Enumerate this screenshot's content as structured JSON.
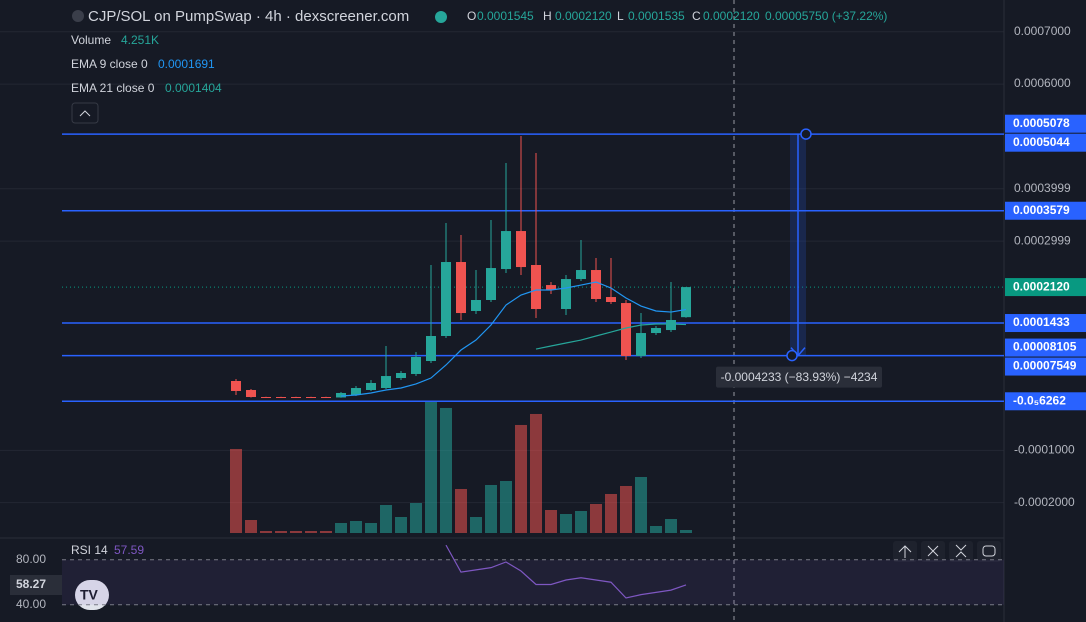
{
  "chart_data": {
    "type": "candlestick",
    "title": "CJP/SOL on PumpSwap · 4h · dexscreener.com",
    "ohlc_legend": [
      {
        "key": "O",
        "value": "0.0001545"
      },
      {
        "key": "H",
        "value": "0.0002120"
      },
      {
        "key": "L",
        "value": "0.0001535"
      },
      {
        "key": "C",
        "value": "0.0002120"
      }
    ],
    "change": "0.00005750 (+37.22%)",
    "categories": [
      null,
      null,
      null,
      null,
      null,
      null,
      null,
      null,
      null,
      null,
      null,
      null,
      null,
      null,
      null,
      null,
      null,
      null,
      null,
      null,
      null,
      null,
      null,
      null,
      null,
      null,
      null,
      null,
      null,
      null,
      null
    ],
    "open": [
      3.25e-05,
      1.53e-05,
      1.9e-06,
      1.9e-06,
      1.9e-06,
      1.9e-06,
      1.9e-06,
      1e-06,
      5.7e-06,
      1.53e-05,
      1.91e-05,
      3.82e-05,
      4.59e-05,
      7.07e-05,
      0.0001185,
      0.0002599,
      0.0001663,
      0.0001873,
      0.0002465,
      0.0003191,
      0.0002542,
      0.0002159,
      0.0001701,
      0.0002274,
      0.0002446,
      0.000193,
      0.0001815,
      8.03e-05,
      0.0001242,
      0.0001299,
      0.0001545
    ],
    "high": [
      3.63e-05,
      1.72e-05,
      2.5e-06,
      2.5e-06,
      2.5e-06,
      2.5e-06,
      2.5e-06,
      1.15e-05,
      2.29e-05,
      3.44e-05,
      9.94e-05,
      5.16e-05,
      8.79e-05,
      0.0002542,
      0.0003344,
      0.0003115,
      0.0002446,
      0.0003402,
      0.0004491,
      0.0005007,
      0.0004682,
      0.0002217,
      0.0002351,
      0.0003019,
      0.0002675,
      0.0002675,
      0.0001873,
      0.0001624,
      0.0001376,
      0.0002217,
      0.000212
    ],
    "low": [
      5.7e-06,
      1e-06,
      1e-06,
      1e-06,
      1e-06,
      1e-06,
      1e-06,
      5e-07,
      3.8e-06,
      1.34e-05,
      1.72e-05,
      3.44e-05,
      4.2e-05,
      6.69e-05,
      0.0001147,
      0.0001491,
      0.0001605,
      0.0001835,
      0.0002389,
      0.0002351,
      0.0001529,
      0.0001987,
      0.0001586,
      0.0002236,
      0.0001835,
      0.0001796,
      7.26e-05,
      7.64e-05,
      0.0001204,
      0.0001261,
      0.0001535
    ],
    "close": [
      1.34e-05,
      1.9e-06,
      1.5e-06,
      1.5e-06,
      1.5e-06,
      1.5e-06,
      1.5e-06,
      9.6e-06,
      1.91e-05,
      2.87e-05,
      4.2e-05,
      4.78e-05,
      7.84e-05,
      0.0001185,
      0.0002599,
      0.0001624,
      0.0001873,
      0.0002484,
      0.0003191,
      0.0002503,
      0.0001701,
      0.0002064,
      0.0002274,
      0.0002446,
      0.0001892,
      0.0001835,
      8.03e-05,
      0.0001242,
      0.0001338,
      0.0001491,
      0.000212
    ],
    "up_color": "#26a69a",
    "down_color": "#ef5350",
    "ylim": [
      -0.000258,
      0.000732
    ],
    "yticks": [
      {
        "value": 0.0007,
        "label": "0.0007000"
      },
      {
        "value": 0.0006,
        "label": "0.0006000"
      },
      {
        "value": 0.0003999,
        "label": "0.0003999"
      },
      {
        "value": 0.0002999,
        "label": "0.0002999"
      },
      {
        "value": -0.0001,
        "label": "-0.0001000"
      },
      {
        "value": -0.0002,
        "label": "-0.0002000"
      }
    ],
    "volume": {
      "name": "Volume",
      "value_label": "4.251K",
      "ylim": [
        0,
        212500
      ],
      "values": [
        119028,
        18421,
        2834,
        2834,
        2834,
        2834,
        2834,
        14170,
        17004,
        14170,
        39676,
        22672,
        42510,
        187044,
        177125,
        62348,
        22672,
        68016,
        73684,
        153036,
        168623,
        32591,
        26923,
        31174,
        41093,
        55263,
        66599,
        79352,
        9919,
        19838,
        4251
      ]
    },
    "ema": [
      {
        "name": "EMA 9 close 0",
        "value_label": "0.0001691",
        "color": "#2196f3",
        "values": [
          null,
          null,
          null,
          null,
          null,
          null,
          null,
          3.8e-06,
          5.7e-06,
          9.6e-06,
          1.53e-05,
          1.91e-05,
          2.68e-05,
          3.82e-05,
          6.31e-05,
          9.17e-05,
          0.0001108,
          0.0001395,
          0.0001777,
          0.0001968,
          0.0002064,
          0.0002064,
          0.0002102,
          0.0002159,
          0.0002217,
          0.0002102,
          0.0001911,
          0.0001758,
          0.0001663,
          0.0001643,
          0.0001691
        ]
      },
      {
        "name": "EMA 21 close 0",
        "value_label": "0.0001404",
        "color": "#26a69a",
        "values": [
          null,
          null,
          null,
          null,
          null,
          null,
          null,
          null,
          null,
          null,
          null,
          null,
          null,
          null,
          null,
          null,
          null,
          null,
          null,
          null,
          9.36e-05,
          9.94e-05,
          0.0001051,
          0.0001108,
          0.0001185,
          0.0001261,
          0.0001338,
          0.0001395,
          0.0001414,
          0.0001414,
          0.0001404
        ]
      }
    ],
    "price_labels": [
      {
        "value": 0.0005078,
        "label": "0.0005078",
        "color": "#2962ff",
        "line": "none"
      },
      {
        "value": 0.0005044,
        "label": "0.0005044",
        "color": "#2962ff",
        "line": "solid"
      },
      {
        "value": 0.0003579,
        "label": "0.0003579",
        "color": "#2962ff",
        "line": "solid"
      },
      {
        "value": 0.000212,
        "label": "0.0002120",
        "color": "#089981",
        "line": "dotted"
      },
      {
        "value": 0.0001433,
        "label": "0.0001433",
        "color": "#2962ff",
        "line": "solid"
      },
      {
        "value": 8.105e-05,
        "label": "0.00008105",
        "color": "#2962ff",
        "line": "solid"
      },
      {
        "value": 7.549e-05,
        "label": "0.00007549",
        "color": "#2962ff",
        "line": "none"
      },
      {
        "value": -6.262e-06,
        "label": "-0.0₅6262",
        "color": "#2962ff",
        "line": "solid"
      }
    ],
    "measure": {
      "from": 0.0005044,
      "to": 8.105e-05,
      "label": "-0.0004233 (−83.93%) −4234"
    },
    "rsi": {
      "name": "RSI 14",
      "value_label": "57.59",
      "current_label": "58.27",
      "color": "#7e57c2",
      "ylim": [
        30,
        94
      ],
      "yticks": [
        {
          "value": 80,
          "label": "80.00"
        },
        {
          "value": 40,
          "label": "40.00"
        }
      ],
      "values": [
        null,
        null,
        null,
        null,
        null,
        null,
        null,
        null,
        null,
        null,
        null,
        null,
        null,
        null,
        93,
        69,
        71,
        73,
        78,
        70,
        58,
        58,
        62,
        64,
        62,
        60,
        46,
        49,
        51,
        53,
        57.59
      ]
    }
  }
}
